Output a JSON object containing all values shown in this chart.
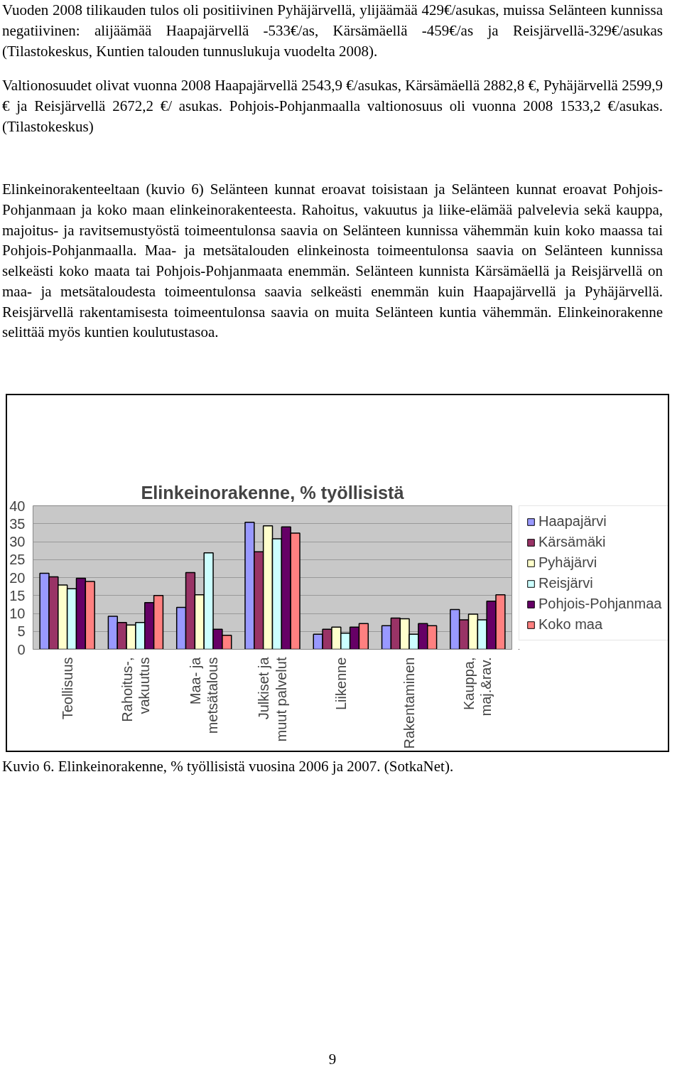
{
  "chart_data": {
    "type": "bar",
    "title": "Elinkeinorakenne, % työllisistä",
    "categories": [
      "Teollisuus",
      "Rahoitus-, vakuutus",
      "Maa- ja metsätalous",
      "Julkiset ja muut palvelut",
      "Liikenne",
      "Rakentaminen",
      "Kauppa, maj.&rav."
    ],
    "series": [
      {
        "name": "Haapajärvi",
        "color": "#9999ff",
        "values": [
          21.2,
          9.2,
          11.7,
          35.4,
          4.2,
          6.6,
          11.1
        ]
      },
      {
        "name": "Kärsämäki",
        "color": "#993366",
        "values": [
          20.2,
          7.5,
          21.4,
          27.2,
          5.6,
          8.7,
          8.2
        ]
      },
      {
        "name": "Pyhäjärvi",
        "color": "#ffffcc",
        "values": [
          17.9,
          6.8,
          15.2,
          34.4,
          6.2,
          8.5,
          9.8
        ]
      },
      {
        "name": "Reisjärvi",
        "color": "#ccffff",
        "values": [
          16.9,
          7.5,
          26.9,
          30.8,
          4.5,
          4.2,
          8.2
        ]
      },
      {
        "name": "Pohjois-Pohjanmaa",
        "color": "#660066",
        "values": [
          19.8,
          13.0,
          5.6,
          34.1,
          6.2,
          7.2,
          13.4
        ]
      },
      {
        "name": "Koko maa",
        "color": "#ff8080",
        "values": [
          18.9,
          15.0,
          3.9,
          32.4,
          7.2,
          6.6,
          15.2
        ]
      }
    ],
    "ylim": [
      0,
      40
    ],
    "yticks": [
      0,
      5,
      10,
      15,
      20,
      25,
      30,
      35,
      40
    ],
    "grid": "y",
    "legend": "right",
    "annotations": [
      "Vuoden 2008 tilikauden tulos oli positiivinen Pyhäjärvellä, ylijäämää 429€/asukas, muissa Selänteen kunnissa negatiivinen: alijäämää Haapajärvellä -533€/as, Kärsämäellä -459€/as ja Reisjärvellä-329€/asukas (Tilastokeskus, Kuntien talouden tunnuslukuja vuodelta 2008).",
      "Valtionosuudet olivat vuonna 2008 Haapajärvellä 2543,9 €/asukas, Kärsämäellä 2882,8 €, Pyhäjärvellä 2599,9 € ja Reisjärvellä 2672,2 €/ asukas. Pohjois-Pohjanmaalla valtionosuus oli vuonna 2008 1533,2 €/asukas. (Tilastokeskus)",
      "Elinkeinorakenteeltaan (kuvio 6) Selänteen kunnat eroavat toisistaan ja Selänteen kunnat eroavat Pohjois-Pohjanmaan ja koko maan elinkeinorakenteesta. Rahoitus, vakuutus ja liike-elämää palvelevia sekä kauppa, majoitus- ja ravitsemustyöstä toimeentulonsa saavia on Selänteen kunnissa vähemmän kuin koko maassa tai Pohjois-Pohjanmaalla. Maa- ja metsätalouden elinkeinosta toimeentulonsa saavia on Selänteen kunnissa selkeästi koko maata tai Pohjois-Pohjanmaata enemmän. Selänteen kunnista Kärsämäellä ja Reisjärvellä on maa- ja metsätaloudesta toimeentulonsa saavia selkeästi enemmän kuin Haapajärvellä ja Pyhäjärvellä. Reisjärvellä rakentamisesta toimeentulonsa saavia on muita Selänteen kuntia vähemmän. Elinkeinorakenne selittää myös kuntien koulutustasoa.",
      "Kuvio 6. Elinkeinorakenne, % työllisistä vuosina 2006 ja 2007. (SotkaNet).",
      "9"
    ]
  }
}
